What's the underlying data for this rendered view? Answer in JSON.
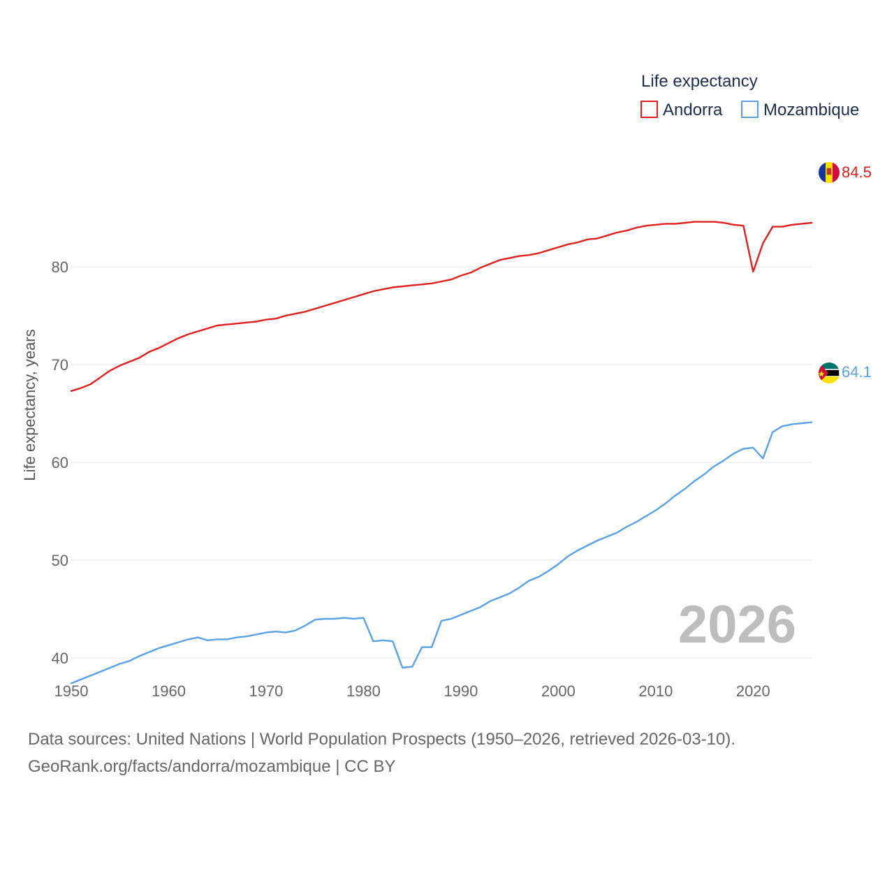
{
  "chart_data": {
    "type": "line",
    "ylabel": "Life expectancy, years",
    "xlabel": "",
    "xlim": [
      1950,
      2026
    ],
    "ylim": [
      35,
      95
    ],
    "x_ticks": [
      1950,
      1960,
      1970,
      1980,
      1990,
      2000,
      2010,
      2020
    ],
    "y_ticks": [
      40,
      50,
      60,
      70,
      80
    ],
    "grid": true,
    "legend_title": "Life expectancy",
    "legend_position": "top-right",
    "current_year": "2026",
    "x": [
      1950,
      1951,
      1952,
      1953,
      1954,
      1955,
      1956,
      1957,
      1958,
      1959,
      1960,
      1961,
      1962,
      1963,
      1964,
      1965,
      1966,
      1967,
      1968,
      1969,
      1970,
      1971,
      1972,
      1973,
      1974,
      1975,
      1976,
      1977,
      1978,
      1979,
      1980,
      1981,
      1982,
      1983,
      1984,
      1985,
      1986,
      1987,
      1988,
      1989,
      1990,
      1991,
      1992,
      1993,
      1994,
      1995,
      1996,
      1997,
      1998,
      1999,
      2000,
      2001,
      2002,
      2003,
      2004,
      2005,
      2006,
      2007,
      2008,
      2009,
      2010,
      2011,
      2012,
      2013,
      2014,
      2015,
      2016,
      2017,
      2018,
      2019,
      2020,
      2021,
      2022,
      2023,
      2024,
      2025,
      2026
    ],
    "series": [
      {
        "name": "Andorra",
        "color": "#e0201f",
        "end_label": "84.5",
        "flag": "andorra-flag",
        "values": [
          67.3,
          67.6,
          68.0,
          68.7,
          69.4,
          69.9,
          70.3,
          70.7,
          71.3,
          71.7,
          72.2,
          72.7,
          73.1,
          73.4,
          73.7,
          74.0,
          74.1,
          74.2,
          74.3,
          74.4,
          74.6,
          74.7,
          75.0,
          75.2,
          75.4,
          75.7,
          76.0,
          76.3,
          76.6,
          76.9,
          77.2,
          77.5,
          77.7,
          77.9,
          78.0,
          78.1,
          78.2,
          78.3,
          78.5,
          78.7,
          79.1,
          79.4,
          79.9,
          80.3,
          80.7,
          80.9,
          81.1,
          81.2,
          81.4,
          81.7,
          82.0,
          82.3,
          82.5,
          82.8,
          82.9,
          83.2,
          83.5,
          83.7,
          84.0,
          84.2,
          84.3,
          84.4,
          84.4,
          84.5,
          84.6,
          84.6,
          84.6,
          84.5,
          84.3,
          84.2,
          79.5,
          82.4,
          84.1,
          84.1,
          84.3,
          84.4,
          84.5
        ]
      },
      {
        "name": "Mozambique",
        "color": "#5aa2e6",
        "end_label": "64.1",
        "flag": "mozambique-flag",
        "values": [
          37.4,
          37.8,
          38.2,
          38.6,
          39.0,
          39.4,
          39.7,
          40.2,
          40.6,
          41.0,
          41.3,
          41.6,
          41.9,
          42.1,
          41.8,
          41.9,
          41.9,
          42.1,
          42.2,
          42.4,
          42.6,
          42.7,
          42.6,
          42.8,
          43.3,
          43.9,
          44.0,
          44.0,
          44.1,
          44.0,
          44.1,
          41.7,
          41.8,
          41.7,
          39.0,
          39.1,
          41.1,
          41.1,
          43.8,
          44.0,
          44.4,
          44.8,
          45.2,
          45.8,
          46.2,
          46.6,
          47.2,
          47.9,
          48.3,
          48.9,
          49.6,
          50.4,
          51.0,
          51.5,
          52.0,
          52.4,
          52.8,
          53.4,
          53.9,
          54.5,
          55.1,
          55.8,
          56.6,
          57.3,
          58.1,
          58.8,
          59.6,
          60.2,
          60.9,
          61.4,
          61.5,
          60.4,
          63.1,
          63.7,
          63.9,
          64.0,
          64.1
        ]
      }
    ]
  },
  "footer": {
    "sources": "Data sources: United Nations | World Population Prospects (1950–2026, retrieved 2026-03-10).",
    "credit": "GeoRank.org/facts/andorra/mozambique | CC BY"
  }
}
